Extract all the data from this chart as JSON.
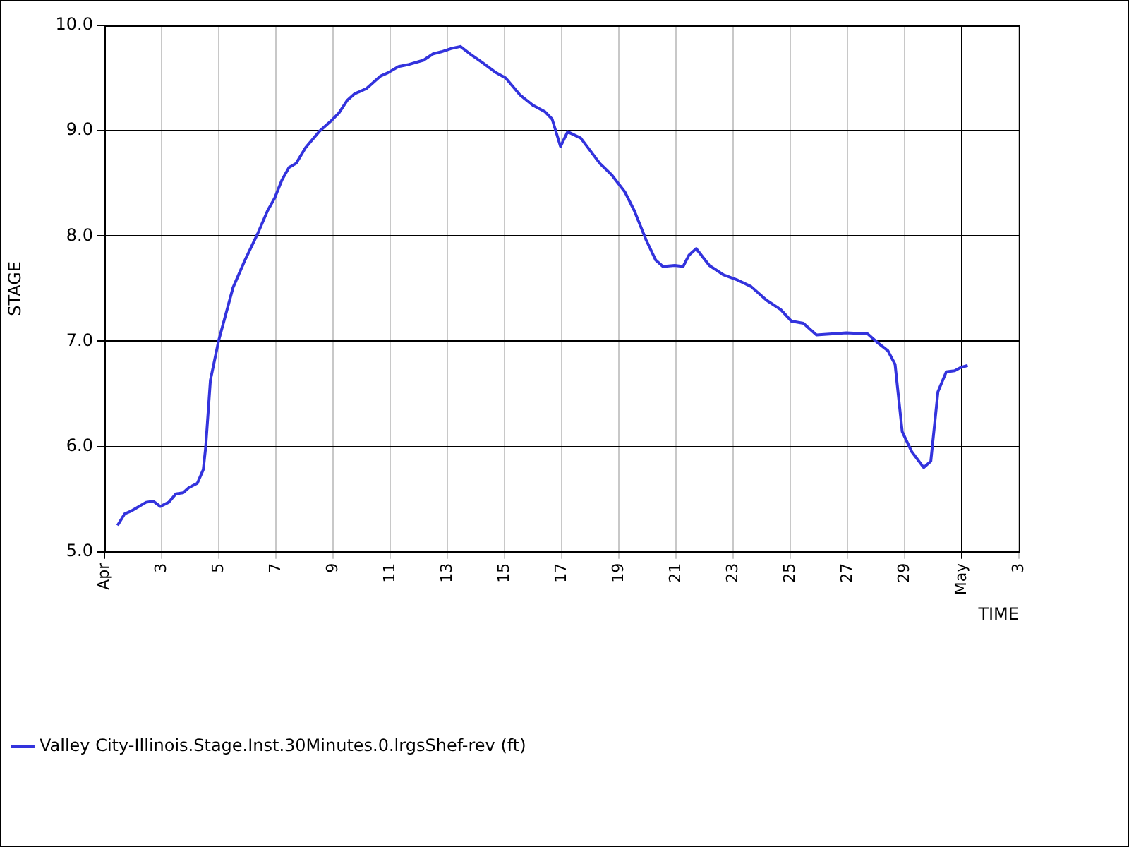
{
  "chart_data": {
    "type": "line",
    "xlabel": "TIME",
    "ylabel": "STAGE",
    "x": [
      "--04-01T11:00",
      "--04-01T17:00",
      "--04-01T23:00",
      "--04-02T11:00",
      "--04-02T17:00",
      "--04-02T23:00",
      "--04-03T06:00",
      "--04-03T12:00",
      "--04-03T18:00",
      "--04-03T23:00",
      "--04-04T06:00",
      "--04-04T11:00",
      "--04-04T13:00",
      "--04-04T17:00",
      "--04-05T00:00",
      "--04-05T12:00",
      "--04-05T22:00",
      "--04-06T09:00",
      "--04-06T17:00",
      "--04-06T23:00",
      "--04-07T05:00",
      "--04-07T11:00",
      "--04-07T17:00",
      "--04-08T01:00",
      "--04-08T13:00",
      "--04-08T23:00",
      "--04-09T05:00",
      "--04-09T12:00",
      "--04-09T18:00",
      "--04-10T04:00",
      "--04-10T16:00",
      "--04-10T22:00",
      "--04-11T07:00",
      "--04-11T16:00",
      "--04-12T04:00",
      "--04-12T12:00",
      "--04-12T19:00",
      "--04-13T03:00",
      "--04-13T11:00",
      "--04-13T19:00",
      "--04-14T05:00",
      "--04-14T17:00",
      "--04-15T01:00",
      "--04-15T13:00",
      "--04-16T00:00",
      "--04-16T10:00",
      "--04-16T16:00",
      "--04-16T23:00",
      "--04-17T05:00",
      "--04-17T16:00",
      "--04-18T08:00",
      "--04-18T18:00",
      "--04-19T05:00",
      "--04-19T13:00",
      "--04-19T23:00",
      "--04-20T07:00",
      "--04-20T13:00",
      "--04-20T23:00",
      "--04-21T06:00",
      "--04-21T11:00",
      "--04-21T17:00",
      "--04-22T04:00",
      "--04-22T16:00",
      "--04-23T04:00",
      "--04-23T15:00",
      "--04-24T04:00",
      "--04-24T16:00",
      "--04-25T01:00",
      "--04-25T11:00",
      "--04-25T22:00",
      "--04-26T11:00",
      "--04-26T23:00",
      "--04-27T17:00",
      "--04-28T02:00",
      "--04-28T10:00",
      "--04-28T16:00",
      "--04-28T22:00",
      "--04-29T06:00",
      "--04-29T16:00",
      "--04-29T22:00",
      "--04-30T04:00",
      "--04-30T11:00",
      "--04-30T18:00",
      "--04-30T23:00",
      "--05-01T05:00"
    ],
    "series": [
      {
        "name": "Valley City-Illinois.Stage.Inst.30Minutes.0.lrgsShef-rev (ft)",
        "color": "#3333dd",
        "values": [
          5.25,
          5.36,
          5.39,
          5.47,
          5.48,
          5.43,
          5.47,
          5.55,
          5.56,
          5.61,
          5.65,
          5.78,
          5.99,
          6.63,
          7.01,
          7.51,
          7.77,
          8.03,
          8.24,
          8.36,
          8.53,
          8.65,
          8.69,
          8.84,
          9.0,
          9.1,
          9.17,
          9.29,
          9.35,
          9.4,
          9.52,
          9.55,
          9.61,
          9.63,
          9.67,
          9.73,
          9.75,
          9.78,
          9.8,
          9.73,
          9.65,
          9.55,
          9.5,
          9.34,
          9.24,
          9.18,
          9.11,
          8.85,
          8.99,
          8.93,
          8.69,
          8.58,
          8.42,
          8.24,
          7.96,
          7.77,
          7.71,
          7.72,
          7.71,
          7.82,
          7.88,
          7.72,
          7.63,
          7.58,
          7.52,
          7.39,
          7.3,
          7.19,
          7.17,
          7.06,
          7.07,
          7.08,
          7.07,
          6.98,
          6.91,
          6.78,
          6.14,
          5.95,
          5.8,
          5.86,
          6.52,
          6.71,
          6.72,
          6.75,
          6.77
        ]
      }
    ],
    "xlim": [
      "--04-01",
      "--05-03"
    ],
    "xticks": [
      {
        "value": "--04-01",
        "label": "Apr"
      },
      {
        "value": "--04-03",
        "label": "3"
      },
      {
        "value": "--04-05",
        "label": "5"
      },
      {
        "value": "--04-07",
        "label": "7"
      },
      {
        "value": "--04-09",
        "label": "9"
      },
      {
        "value": "--04-11",
        "label": "11"
      },
      {
        "value": "--04-13",
        "label": "13"
      },
      {
        "value": "--04-15",
        "label": "15"
      },
      {
        "value": "--04-17",
        "label": "17"
      },
      {
        "value": "--04-19",
        "label": "19"
      },
      {
        "value": "--04-21",
        "label": "21"
      },
      {
        "value": "--04-23",
        "label": "23"
      },
      {
        "value": "--04-25",
        "label": "25"
      },
      {
        "value": "--04-27",
        "label": "27"
      },
      {
        "value": "--04-29",
        "label": "29"
      },
      {
        "value": "--05-01",
        "label": "May"
      },
      {
        "value": "--05-03",
        "label": "3"
      }
    ],
    "ylim": [
      5,
      10
    ],
    "yticks": [
      {
        "value": 5,
        "label": "5.0"
      },
      {
        "value": 6,
        "label": "6.0"
      },
      {
        "value": 7,
        "label": "7.0"
      },
      {
        "value": 8,
        "label": "8.0"
      },
      {
        "value": 9,
        "label": "9.0"
      },
      {
        "value": 10,
        "label": "10.0"
      }
    ],
    "grid": true,
    "legend": "bottom",
    "marker": "none",
    "line_style": "solid"
  }
}
